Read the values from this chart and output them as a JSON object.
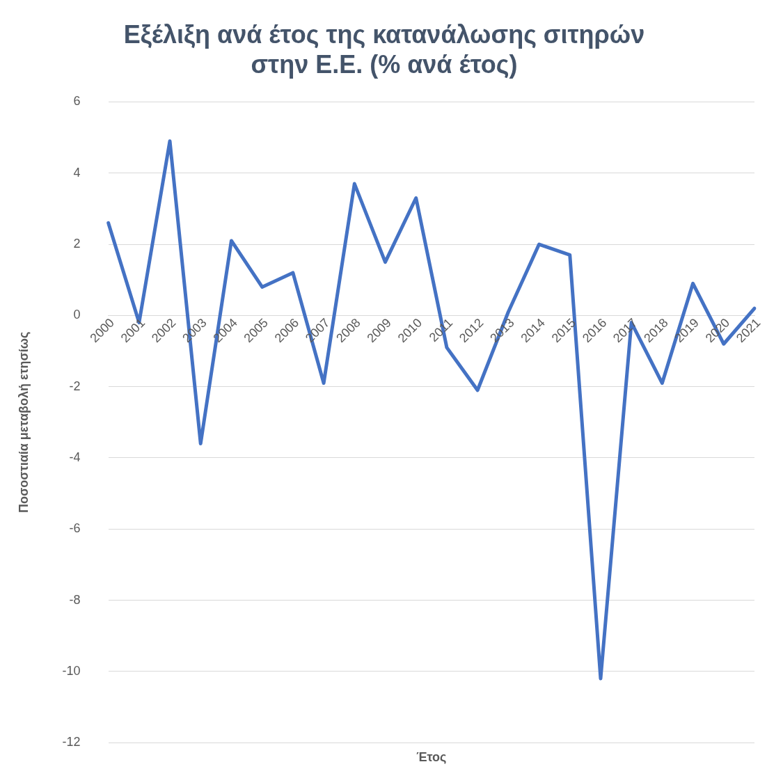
{
  "chart_data": {
    "type": "line",
    "title": "Εξέλιξη ανά έτος της κατανάλωσης σιτηρών\nστην Ε.Ε. (% ανά έτος)",
    "xlabel": "Έτος",
    "ylabel": "Ποσοστιαία μεταβολή ετησίως",
    "categories": [
      "2000",
      "2001",
      "2002",
      "2003",
      "2004",
      "2005",
      "2006",
      "2007",
      "2008",
      "2009",
      "2010",
      "2011",
      "2012",
      "2013",
      "2014",
      "2015",
      "2016",
      "2017",
      "2018",
      "2019",
      "2020",
      "2021"
    ],
    "series": [
      {
        "color": "#4472c4",
        "values": [
          2.6,
          -0.2,
          4.9,
          -3.6,
          2.1,
          0.8,
          1.2,
          -1.9,
          3.7,
          1.5,
          3.3,
          -0.9,
          -2.1,
          0.1,
          2.0,
          1.7,
          -10.2,
          -0.2,
          -1.9,
          0.9,
          -0.8,
          0.2
        ]
      }
    ],
    "ylim": [
      -12,
      6
    ],
    "yticks": [
      -12,
      -10,
      -8,
      -6,
      -4,
      -2,
      0,
      2,
      4,
      6
    ],
    "grid": "y",
    "legend": false,
    "marker": "none",
    "line_style": "solid"
  }
}
